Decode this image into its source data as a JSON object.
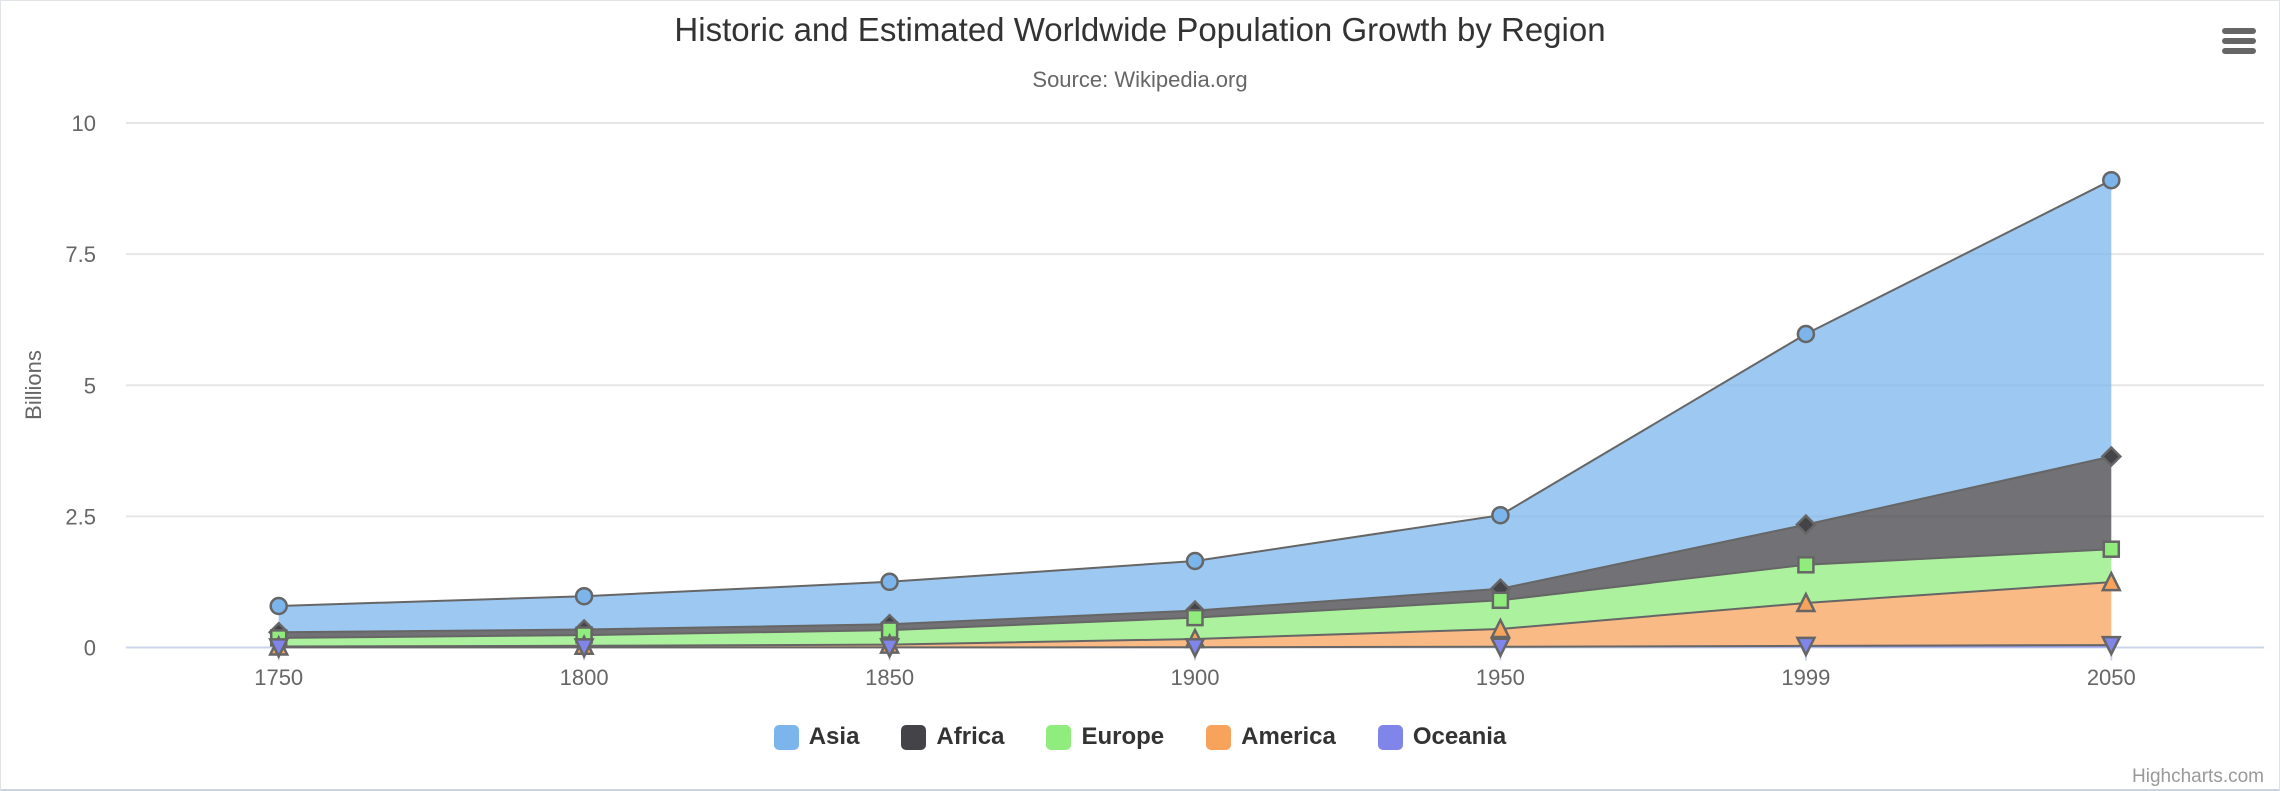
{
  "chart_data": {
    "type": "area",
    "stacking": "normal",
    "title": "Historic and Estimated Worldwide Population Growth by Region",
    "subtitle": "Source: Wikipedia.org",
    "categories": [
      "1750",
      "1800",
      "1850",
      "1900",
      "1950",
      "1999",
      "2050"
    ],
    "xlabel": "",
    "ylabel": "Billions",
    "ylim": [
      0,
      10
    ],
    "y_ticks": [
      0,
      2.5,
      5,
      7.5,
      10
    ],
    "y_tick_labels": [
      "0",
      "2.5",
      "5",
      "7.5",
      "10"
    ],
    "values_unit": "millions of people",
    "grid": true,
    "legend_position": "bottom",
    "stack_bottom_to_top": [
      "Oceania",
      "America",
      "Europe",
      "Africa",
      "Asia"
    ],
    "series": [
      {
        "name": "Asia",
        "color": "#7cb5ec",
        "marker": "circle",
        "values": [
          502,
          635,
          809,
          947,
          1402,
          3634,
          5268
        ]
      },
      {
        "name": "Africa",
        "color": "#434348",
        "marker": "diamond",
        "values": [
          106,
          107,
          111,
          133,
          221,
          767,
          1766
        ]
      },
      {
        "name": "Europe",
        "color": "#90ed7d",
        "marker": "square",
        "values": [
          163,
          203,
          276,
          408,
          547,
          729,
          628
        ]
      },
      {
        "name": "America",
        "color": "#f7a35c",
        "marker": "triangle",
        "values": [
          18,
          31,
          54,
          156,
          339,
          818,
          1201
        ]
      },
      {
        "name": "Oceania",
        "color": "#8085e9",
        "marker": "triangle-down",
        "values": [
          2,
          2,
          2,
          6,
          13,
          30,
          46
        ]
      }
    ],
    "stacked_totals_billions": [
      0.79,
      0.98,
      1.25,
      1.65,
      2.52,
      5.98,
      8.91
    ]
  },
  "colors": {
    "series_line": "#666666",
    "grid": "#e6e6e6",
    "axis_line": "#ccd6eb",
    "title": "#333333",
    "subtitle": "#666666",
    "labels": "#666666",
    "credits": "#999999"
  },
  "menu": {
    "icon": "hamburger-menu"
  },
  "credits": {
    "label": "Highcharts.com"
  }
}
